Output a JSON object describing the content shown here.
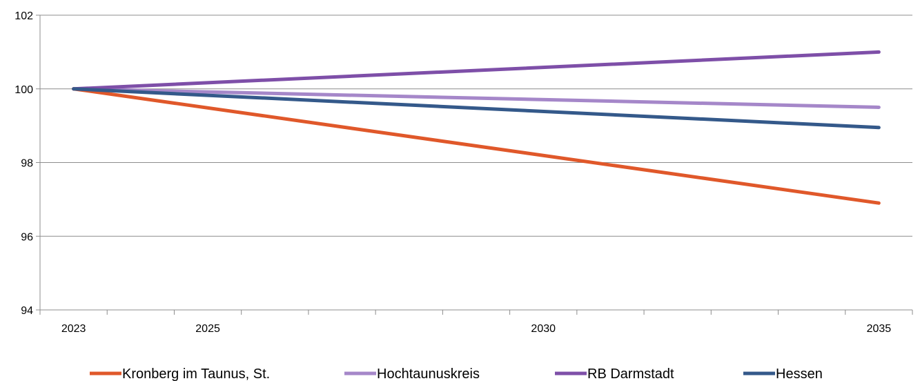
{
  "chart_data": {
    "type": "line",
    "title": "",
    "xlabel": "",
    "ylabel": "",
    "x": [
      2023,
      2035
    ],
    "x_ticks": [
      "2023",
      "2025",
      "2030",
      "2035"
    ],
    "x_range": [
      2022.5,
      2035.5
    ],
    "y_ticks": [
      "94",
      "96",
      "98",
      "100",
      "102"
    ],
    "ylim": [
      94,
      102
    ],
    "grid": true,
    "legend_position": "bottom",
    "series": [
      {
        "name": "Kronberg im Taunus, St.",
        "values": [
          100,
          96.9
        ],
        "color": "#e0582a"
      },
      {
        "name": "Hochtaunuskreis",
        "values": [
          100,
          99.5
        ],
        "color": "#a587c9"
      },
      {
        "name": "RB Darmstadt",
        "values": [
          100,
          101
        ],
        "color": "#7e4fa8"
      },
      {
        "name": "Hessen",
        "values": [
          100,
          98.95
        ],
        "color": "#34598a"
      }
    ]
  }
}
